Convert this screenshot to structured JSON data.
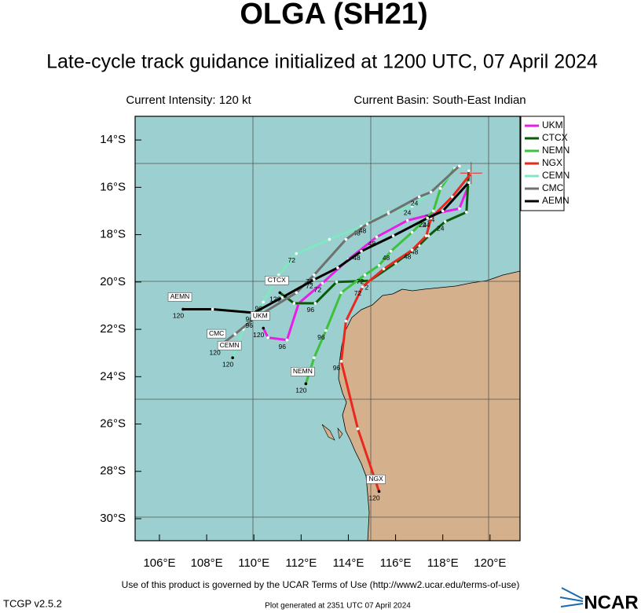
{
  "header": {
    "title": "OLGA (SH21)",
    "subtitle": "Late-cycle track guidance initialized at 1200 UTC, 07 April 2024",
    "intensity": "Current Intensity: 120 kt",
    "basin": "Current Basin: South-East Indian"
  },
  "map": {
    "lonlim": [
      104.97,
      121.27
    ],
    "latlim": [
      -13.0,
      -30.93
    ],
    "lonticks": [
      {
        "value": 106,
        "label": "106°E"
      },
      {
        "value": 108,
        "label": "108°E"
      },
      {
        "value": 110,
        "label": "110°E"
      },
      {
        "value": 112,
        "label": "112°E"
      },
      {
        "value": 114,
        "label": "114°E"
      },
      {
        "value": 116,
        "label": "116°E"
      },
      {
        "value": 118,
        "label": "118°E"
      },
      {
        "value": 120,
        "label": "120°E"
      }
    ],
    "latticks": [
      {
        "value": -14,
        "label": "14°S"
      },
      {
        "value": -16,
        "label": "16°S"
      },
      {
        "value": -18,
        "label": "18°S"
      },
      {
        "value": -20,
        "label": "20°S"
      },
      {
        "value": -22,
        "label": "22°S"
      },
      {
        "value": -24,
        "label": "24°S"
      },
      {
        "value": -26,
        "label": "26°S"
      },
      {
        "value": -28,
        "label": "28°S"
      },
      {
        "value": -30,
        "label": "30°S"
      }
    ],
    "current_position": {
      "lon": 119.2,
      "lat": -15.4
    },
    "labeled_hours": [
      24,
      48,
      72,
      96,
      120
    ],
    "tracks": [
      {
        "name": "UKM",
        "color": "#e81ee8",
        "lon": [
          119.1,
          118.7,
          117.7,
          116.5,
          115.2,
          114.0,
          112.9,
          111.9,
          111.4,
          110.6,
          110.4
        ],
        "lat": [
          -15.9,
          -16.9,
          -17.1,
          -17.4,
          -18.1,
          -19.05,
          -20.05,
          -20.9,
          -22.45,
          -22.35,
          -21.95
        ]
      },
      {
        "name": "CTCX",
        "color": "#0a5a0a",
        "lon": [
          119.1,
          119.0,
          118.1,
          117.4,
          117.0,
          116.0,
          114.9,
          113.5,
          112.6,
          111.7,
          111.1
        ],
        "lat": [
          -15.3,
          -17.05,
          -17.45,
          -18.05,
          -18.45,
          -19.2,
          -19.95,
          -20.0,
          -20.9,
          -20.9,
          -20.45
        ]
      },
      {
        "name": "NEMN",
        "color": "#3cc23c",
        "lon": [
          118.5,
          117.9,
          117.6,
          116.7,
          115.8,
          115.3,
          114.7,
          113.7,
          113.05,
          112.55,
          112.2
        ],
        "lat": [
          -15.2,
          -16.05,
          -17.0,
          -17.9,
          -18.7,
          -19.3,
          -19.7,
          -20.45,
          -22.05,
          -23.2,
          -24.3
        ]
      },
      {
        "name": "NGX",
        "color": "#e8281e",
        "lon": [
          119.2,
          118.4,
          117.5,
          117.3,
          116.7,
          115.5,
          114.6,
          113.9,
          113.7,
          114.4,
          115.3
        ],
        "lat": [
          -15.4,
          -16.4,
          -17.3,
          -18.05,
          -18.65,
          -19.45,
          -20.2,
          -21.65,
          -23.35,
          -26.2,
          -28.85
        ]
      },
      {
        "name": "CEMN",
        "color": "#7ee8c0",
        "lon": [
          118.7,
          117.9,
          116.7,
          115.7,
          114.55,
          113.2,
          111.8,
          111.05,
          110.4,
          109.55,
          109.1
        ],
        "lat": [
          -15.1,
          -15.9,
          -16.8,
          -17.05,
          -17.65,
          -18.2,
          -18.8,
          -19.7,
          -20.85,
          -22.0,
          -23.2
        ]
      },
      {
        "name": "CMC",
        "color": "#707070",
        "lon": [
          118.7,
          117.5,
          117.0,
          115.7,
          114.8,
          113.9,
          112.55,
          111.8,
          110.0,
          109.2,
          108.55
        ],
        "lat": [
          -15.1,
          -16.2,
          -16.4,
          -17.1,
          -17.55,
          -18.2,
          -19.7,
          -20.45,
          -21.55,
          -22.2,
          -22.7
        ]
      },
      {
        "name": "AEMN",
        "color": "#000000",
        "lon": [
          119.1,
          118.0,
          117.35,
          115.9,
          114.55,
          113.55,
          112.55,
          111.2,
          110.0,
          108.25,
          107.0
        ],
        "lat": [
          -15.8,
          -17.0,
          -17.3,
          -18.05,
          -18.7,
          -19.4,
          -19.9,
          -20.65,
          -21.3,
          -21.15,
          -21.15
        ]
      }
    ]
  },
  "footer": {
    "terms": "Use of this product is governed by the UCAR Terms of Use (http://www2.ucar.edu/terms-of-use)",
    "version": "TCGP v2.5.2",
    "generated": "Plot generated at 2351 UTC   07 April 2024",
    "logo": "NCAR"
  }
}
